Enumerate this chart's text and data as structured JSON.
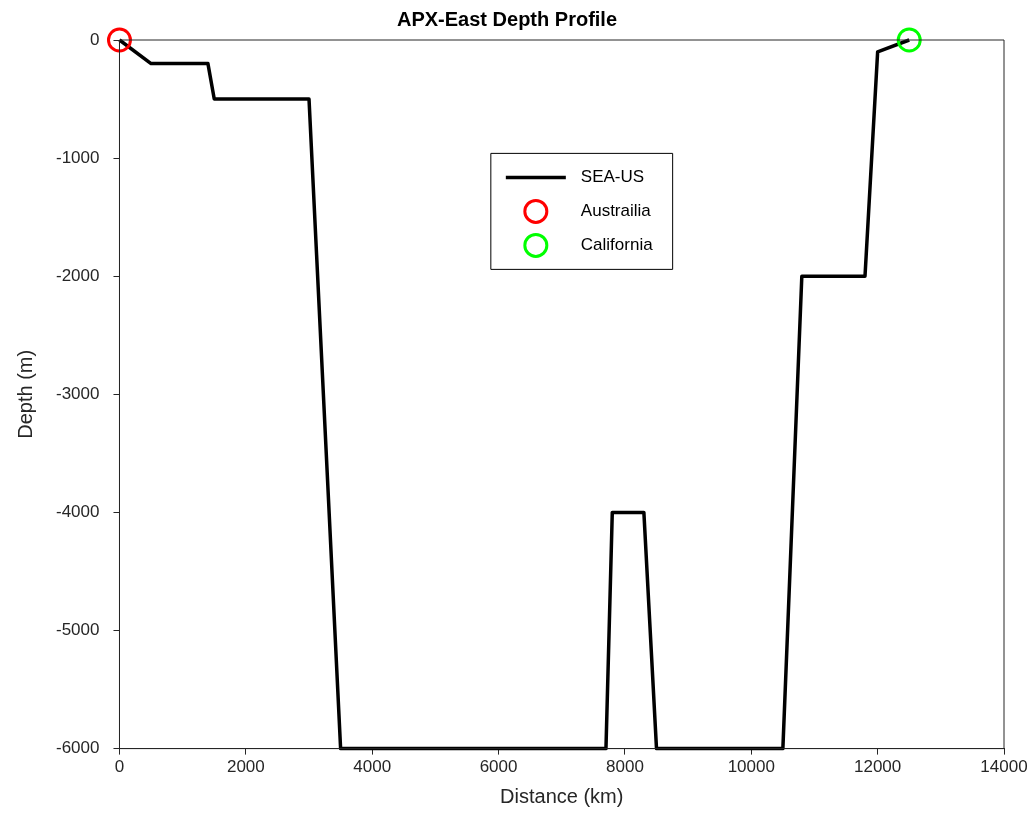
{
  "chart_data": {
    "type": "line",
    "title": "APX-East Depth Profile",
    "xlabel": "Distance (km)",
    "ylabel": "Depth (m)",
    "xlim": [
      0,
      14000
    ],
    "xticks": [
      0,
      2000,
      4000,
      6000,
      8000,
      10000,
      12000,
      14000
    ],
    "ylim": [
      -6000,
      0
    ],
    "yticks": [
      -6000,
      -5000,
      -4000,
      -3000,
      -2000,
      -1000,
      0
    ],
    "grid": false,
    "legend": "top",
    "series": [
      {
        "name": "SEA-US",
        "type": "line",
        "color": "#000000",
        "x": [
          0,
          500,
          1400,
          1500,
          3000,
          3500,
          7700,
          7800,
          8300,
          8500,
          10500,
          10800,
          11800,
          12000,
          12500
        ],
        "values": [
          0,
          -200,
          -200,
          -500,
          -500,
          -6000,
          -6000,
          -4000,
          -4000,
          -6000,
          -6000,
          -2000,
          -2000,
          -100,
          0
        ]
      },
      {
        "name": "Austrailia",
        "type": "scatter",
        "marker": "circle",
        "color": "#ff0000",
        "x": [
          0
        ],
        "values": [
          0
        ]
      },
      {
        "name": "California",
        "type": "scatter",
        "marker": "circle",
        "color": "#00ff00",
        "x": [
          12500
        ],
        "values": [
          0
        ]
      }
    ]
  }
}
